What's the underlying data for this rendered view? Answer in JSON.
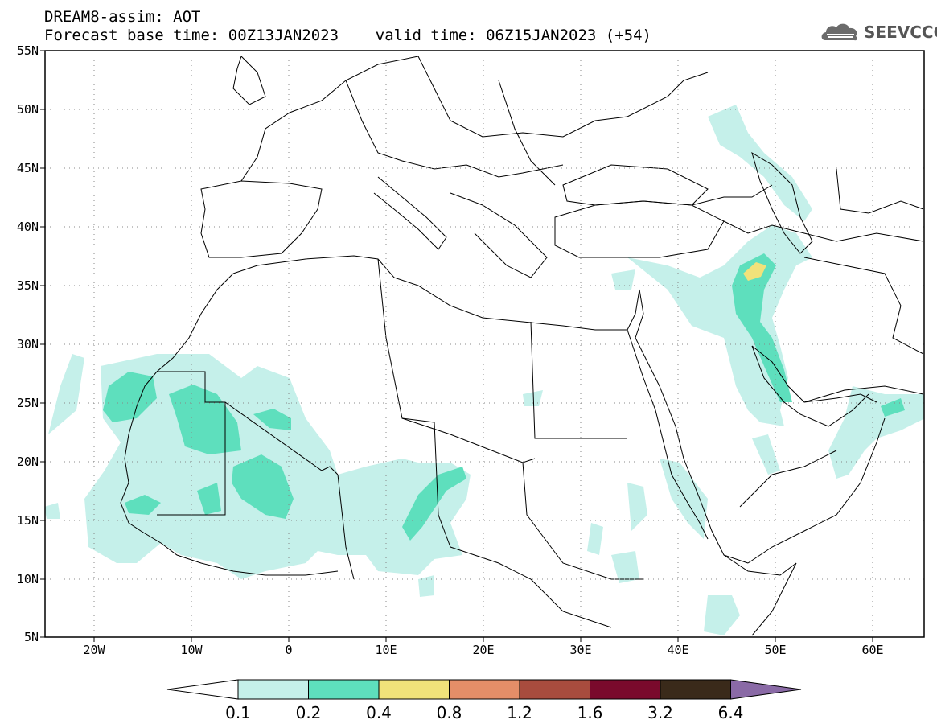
{
  "header": {
    "title_line1": "DREAM8-assim: AOT",
    "title_line2": "Forecast base time: 00Z13JAN2023    valid time: 06Z15JAN2023 (+54)"
  },
  "logo": {
    "text": "SEEVCCC",
    "icon": "cloud-icon"
  },
  "map": {
    "lat_labels": [
      "55N",
      "50N",
      "45N",
      "40N",
      "35N",
      "30N",
      "25N",
      "20N",
      "15N",
      "10N",
      "5N"
    ],
    "lon_labels": [
      "20W",
      "10W",
      "0",
      "10E",
      "20E",
      "30E",
      "40E",
      "50E",
      "60E"
    ],
    "lat_range": [
      5,
      55
    ],
    "lon_range": [
      -25,
      65
    ],
    "grid": "dotted"
  },
  "colorbar": {
    "labels": [
      "0.1",
      "0.2",
      "0.4",
      "0.8",
      "1.2",
      "1.6",
      "3.2",
      "6.4"
    ],
    "colors": [
      "#ffffff",
      "#c5f0ea",
      "#5edfbd",
      "#f0e27a",
      "#e48e68",
      "#a84c3e",
      "#7a0a2c",
      "#3a2a1a",
      "#8a6aa6"
    ]
  }
}
